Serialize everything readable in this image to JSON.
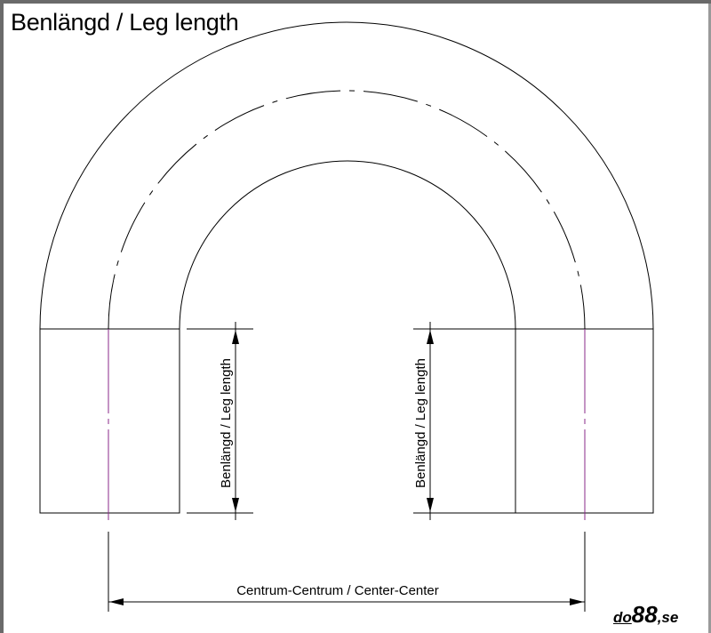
{
  "title": "Benlängd / Leg length",
  "labels": {
    "leg_left": "Benlängd / Leg length",
    "leg_right": "Benlängd / Leg length",
    "center_center": "Centrum-Centrum / Center-Center"
  },
  "logo": {
    "prefix": "do",
    "number": "88",
    "suffix": ",se"
  },
  "colors": {
    "line": "#000000",
    "centerline": "#8a2a8a"
  }
}
